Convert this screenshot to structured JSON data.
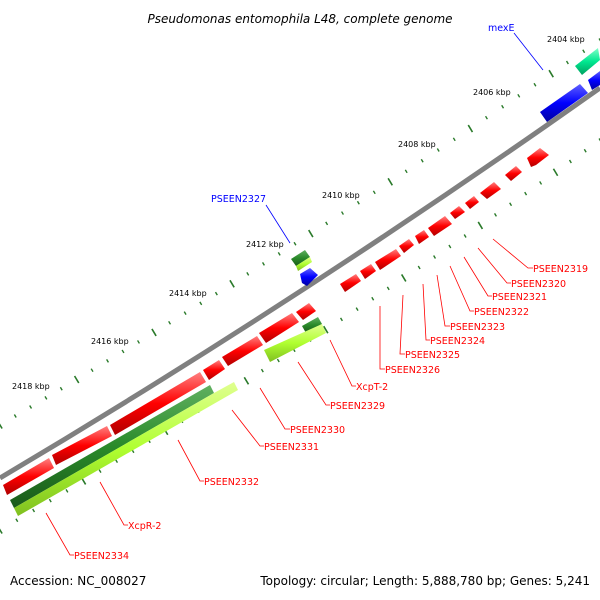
{
  "title": "Pseudomonas entomophila L48, complete genome",
  "footer": {
    "accession": "Accession: NC_008027",
    "topology": "Topology: circular; Length: 5,888,780 bp; Genes: 5,241"
  },
  "colors": {
    "backbone": "#808080",
    "red_gene": "#ff0000",
    "blue_gene": "#0000ff",
    "teal_gene": "#00e890",
    "dark_green_gene": "#2a8a2a",
    "light_green_gene": "#b0ff30",
    "red_label": "#ff0000",
    "blue_label": "#0000ff"
  },
  "kbp_labels": [
    "2404 kbp",
    "2406 kbp",
    "2408 kbp",
    "2410 kbp",
    "2412 kbp",
    "2414 kbp",
    "2416 kbp",
    "2418 kbp"
  ],
  "gene_labels": [
    {
      "id": "mexE",
      "text": "mexE",
      "color": "blue"
    },
    {
      "id": "pseen2327",
      "text": "PSEEN2327",
      "color": "blue"
    },
    {
      "id": "pseen2319",
      "text": "PSEEN2319",
      "color": "red"
    },
    {
      "id": "pseen2320",
      "text": "PSEEN2320",
      "color": "red"
    },
    {
      "id": "pseen2321",
      "text": "PSEEN2321",
      "color": "red"
    },
    {
      "id": "pseen2322",
      "text": "PSEEN2322",
      "color": "red"
    },
    {
      "id": "pseen2323",
      "text": "PSEEN2323",
      "color": "red"
    },
    {
      "id": "pseen2324",
      "text": "PSEEN2324",
      "color": "red"
    },
    {
      "id": "pseen2325",
      "text": "PSEEN2325",
      "color": "red"
    },
    {
      "id": "pseen2326",
      "text": "PSEEN2326",
      "color": "red"
    },
    {
      "id": "xcpt2",
      "text": "XcpT-2",
      "color": "red"
    },
    {
      "id": "pseen2329",
      "text": "PSEEN2329",
      "color": "red"
    },
    {
      "id": "pseen2330",
      "text": "PSEEN2330",
      "color": "red"
    },
    {
      "id": "pseen2331",
      "text": "PSEEN2331",
      "color": "red"
    },
    {
      "id": "pseen2332",
      "text": "PSEEN2332",
      "color": "red"
    },
    {
      "id": "xcpr2",
      "text": "XcpR-2",
      "color": "red"
    },
    {
      "id": "pseen2334",
      "text": "PSEEN2334",
      "color": "red"
    }
  ]
}
